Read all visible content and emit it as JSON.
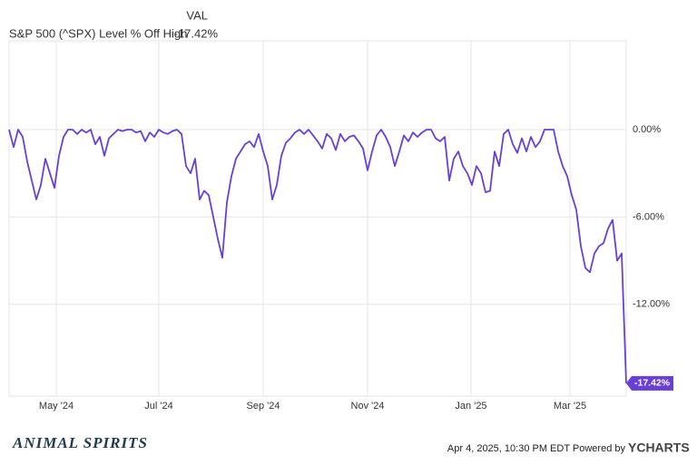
{
  "chart_data": {
    "type": "line",
    "legend_header": "VAL",
    "series": [
      {
        "name": "S&P 500 (^SPX) Level % Off High",
        "color": "#6a3fd6",
        "values": [
          0,
          -1.2,
          0,
          -0.5,
          -2.2,
          -3.5,
          -4.8,
          -3.8,
          -2,
          -3,
          -4,
          -1.8,
          -0.5,
          0,
          0,
          -0.3,
          0,
          -0.2,
          0,
          -1,
          -0.5,
          -1.8,
          -0.6,
          -0.3,
          0,
          -0.1,
          0,
          0,
          -0.2,
          -0.1,
          -0.8,
          -0.2,
          -0.5,
          0,
          -0.2,
          -0.3,
          -0.1,
          0,
          -0.3,
          -2.5,
          -3,
          -2,
          -4.8,
          -4.2,
          -4.5,
          -6,
          -7.5,
          -8.8,
          -5,
          -3.2,
          -2,
          -1.5,
          -1,
          -0.8,
          -1.2,
          -0.3,
          -1.5,
          -2.5,
          -4.8,
          -3.8,
          -1.8,
          -0.9,
          -0.6,
          -0.2,
          0,
          -0.3,
          0,
          -0.4,
          -0.8,
          -1.3,
          -0.3,
          -0.6,
          -1.4,
          -0.3,
          -0.8,
          -0.5,
          -0.4,
          -0.8,
          -1.3,
          -2.8,
          -1.5,
          -0.4,
          0,
          -0.5,
          -1.2,
          -2.5,
          -1.5,
          -0.4,
          -0.8,
          -0.2,
          -0.5,
          -0.2,
          0,
          0,
          -0.6,
          -0.8,
          -0.5,
          -3.5,
          -2,
          -1.5,
          -2.5,
          -3,
          -3.8,
          -2.5,
          -3,
          -4.3,
          -4.2,
          -1.5,
          -2.5,
          -0.3,
          0,
          -1,
          -1.6,
          -0.6,
          -1.5,
          -0.5,
          -1.2,
          -0.8,
          0,
          0,
          0,
          -1.5,
          -2.5,
          -3.2,
          -4.5,
          -5.5,
          -8,
          -9.5,
          -9.8,
          -8.5,
          -8,
          -7.8,
          -6.8,
          -6.2,
          -9,
          -8.5,
          -17.42
        ],
        "value_labels": [
          null,
          null,
          null,
          null,
          null,
          null,
          null,
          null,
          null,
          null,
          null,
          null,
          null,
          null,
          null,
          null,
          null,
          null,
          null,
          null,
          null,
          null,
          null,
          null,
          null,
          null,
          null,
          null,
          null,
          null,
          null,
          null,
          null,
          null,
          null,
          null,
          null,
          null,
          null,
          null,
          null,
          null,
          null,
          null,
          null,
          null,
          null,
          null,
          null,
          null,
          null,
          null,
          null,
          null,
          null,
          null,
          null,
          null,
          null,
          null,
          null,
          null,
          null,
          null,
          null,
          null,
          null,
          null,
          null,
          null,
          null,
          null,
          null,
          null,
          null,
          null,
          null,
          null,
          null,
          null,
          null,
          null,
          null,
          null,
          null,
          null,
          null,
          null,
          null,
          null,
          null,
          null,
          null,
          null,
          null,
          null,
          null,
          null,
          null,
          null,
          null,
          null,
          null,
          null,
          null,
          null,
          null,
          null,
          null,
          null,
          null,
          null,
          null,
          null,
          null,
          null,
          null,
          null,
          null,
          null,
          null,
          null,
          null,
          null,
          null,
          null,
          null,
          null,
          null,
          null,
          null,
          null,
          null,
          null,
          null,
          null,
          "-17.42%"
        ]
      }
    ],
    "xlim": [
      0,
      136
    ],
    "xticks": [
      {
        "value": 10.4,
        "label": "May '24"
      },
      {
        "value": 33,
        "label": "Jul '24"
      },
      {
        "value": 56,
        "label": "Sep '24"
      },
      {
        "value": 79,
        "label": "Nov '24"
      },
      {
        "value": 101.8,
        "label": "Jan '25"
      },
      {
        "value": 123.6,
        "label": "Mar '25"
      }
    ],
    "ylim": [
      -18.3,
      6.1
    ],
    "yticks": [
      {
        "value": 0,
        "label": "0.00%"
      },
      {
        "value": -6,
        "label": "-6.00%"
      },
      {
        "value": -12,
        "label": "-12.00%"
      }
    ],
    "grid": true
  },
  "footer": {
    "brand": "ANIMAL SPIRITS",
    "timestamp": "Apr 4, 2025, 10:30 PM EDT Powered by",
    "provider": "YCHARTS"
  }
}
